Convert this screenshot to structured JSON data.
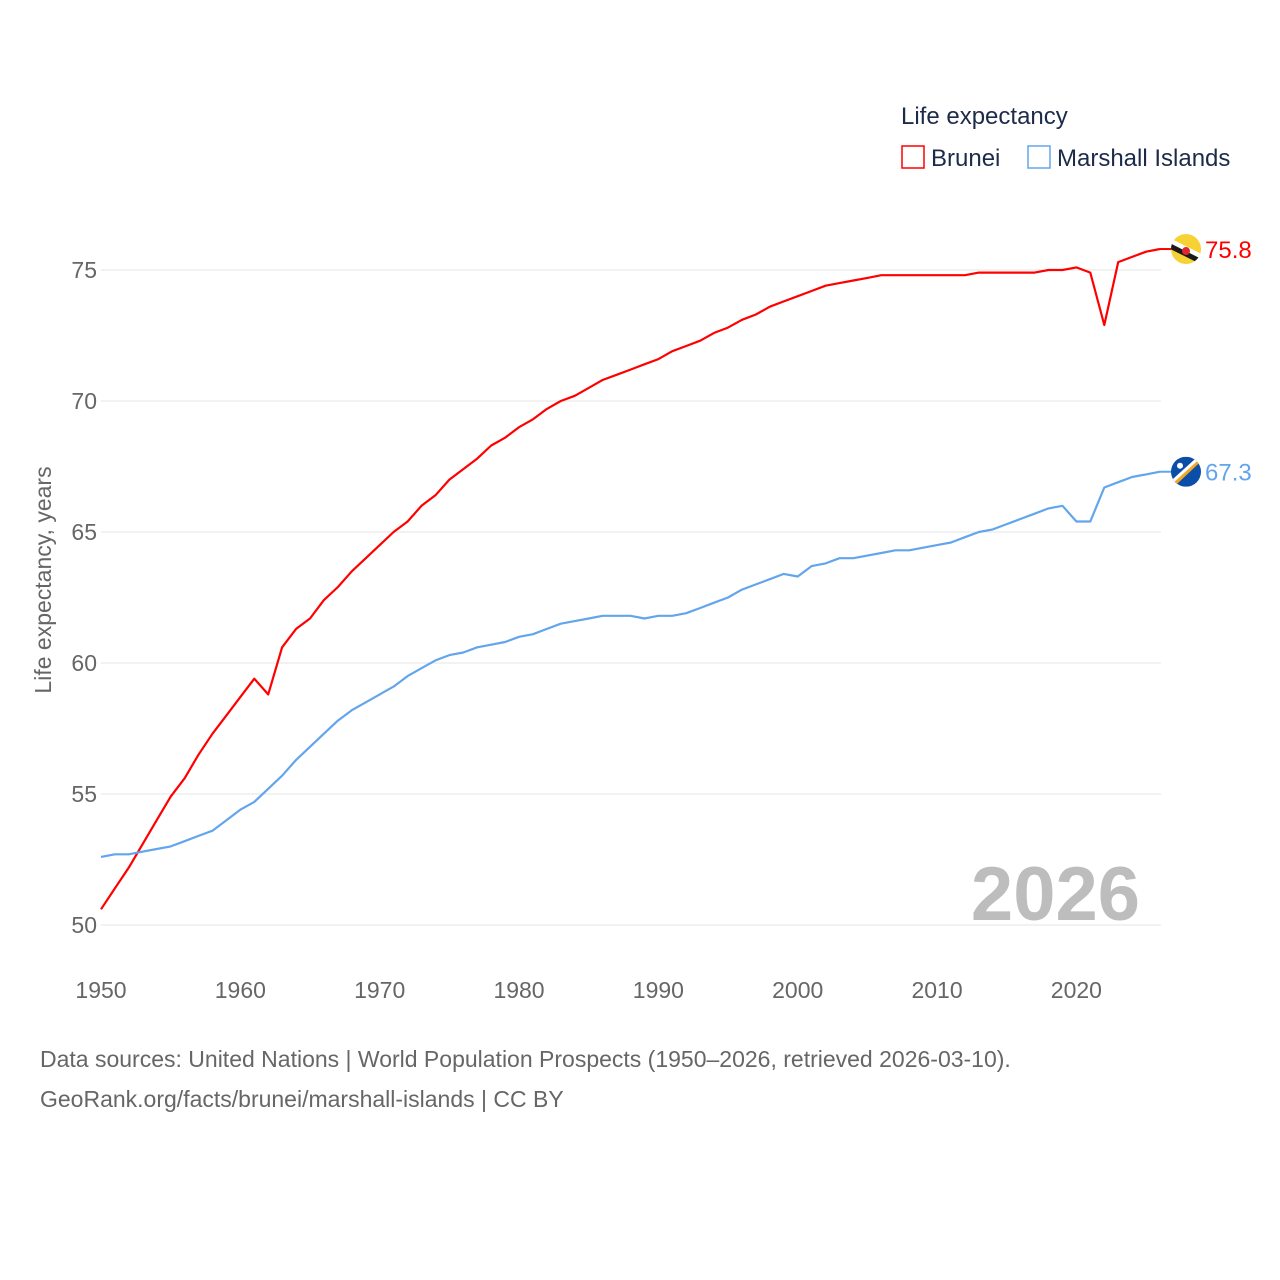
{
  "chart_data": {
    "type": "line",
    "ylabel": "Life expectancy, years",
    "xlabel": "",
    "xlim": [
      1950,
      2026
    ],
    "ylim": [
      50,
      76
    ],
    "yticks": [
      50,
      55,
      60,
      65,
      70,
      75
    ],
    "xticks": [
      1950,
      1960,
      1970,
      1980,
      1990,
      2000,
      2010,
      2020
    ],
    "grid": true,
    "legend": {
      "title": "Life expectancy",
      "placement": "top-right"
    },
    "current_year": "2026",
    "x": [
      1950,
      1951,
      1952,
      1953,
      1954,
      1955,
      1956,
      1957,
      1958,
      1959,
      1960,
      1961,
      1962,
      1963,
      1964,
      1965,
      1966,
      1967,
      1968,
      1969,
      1970,
      1971,
      1972,
      1973,
      1974,
      1975,
      1976,
      1977,
      1978,
      1979,
      1980,
      1981,
      1982,
      1983,
      1984,
      1985,
      1986,
      1987,
      1988,
      1989,
      1990,
      1991,
      1992,
      1993,
      1994,
      1995,
      1996,
      1997,
      1998,
      1999,
      2000,
      2001,
      2002,
      2003,
      2004,
      2005,
      2006,
      2007,
      2008,
      2009,
      2010,
      2011,
      2012,
      2013,
      2014,
      2015,
      2016,
      2017,
      2018,
      2019,
      2020,
      2021,
      2022,
      2023,
      2024,
      2025,
      2026
    ],
    "series": [
      {
        "name": "Brunei",
        "color": "#ff0000",
        "end_label": "75.8",
        "flag": "brunei-flag",
        "values": [
          50.6,
          51.4,
          52.2,
          53.1,
          54.0,
          54.9,
          55.6,
          56.5,
          57.3,
          58.0,
          58.7,
          59.4,
          58.8,
          60.6,
          61.3,
          61.7,
          62.4,
          62.9,
          63.5,
          64.0,
          64.5,
          65.0,
          65.4,
          66.0,
          66.4,
          67.0,
          67.4,
          67.8,
          68.3,
          68.6,
          69.0,
          69.3,
          69.7,
          70.0,
          70.2,
          70.5,
          70.8,
          71.0,
          71.2,
          71.4,
          71.6,
          71.9,
          72.1,
          72.3,
          72.6,
          72.8,
          73.1,
          73.3,
          73.6,
          73.8,
          74.0,
          74.2,
          74.4,
          74.5,
          74.6,
          74.7,
          74.8,
          74.8,
          74.8,
          74.8,
          74.8,
          74.8,
          74.8,
          74.9,
          74.9,
          74.9,
          74.9,
          74.9,
          75.0,
          75.0,
          75.1,
          74.9,
          72.9,
          75.3,
          75.5,
          75.7,
          75.8
        ]
      },
      {
        "name": "Marshall Islands",
        "color": "#63a5ec",
        "end_label": "67.3",
        "flag": "marshall-islands-flag",
        "values": [
          52.6,
          52.7,
          52.7,
          52.8,
          52.9,
          53.0,
          53.2,
          53.4,
          53.6,
          54.0,
          54.4,
          54.7,
          55.2,
          55.7,
          56.3,
          56.8,
          57.3,
          57.8,
          58.2,
          58.5,
          58.8,
          59.1,
          59.5,
          59.8,
          60.1,
          60.3,
          60.4,
          60.6,
          60.7,
          60.8,
          61.0,
          61.1,
          61.3,
          61.5,
          61.6,
          61.7,
          61.8,
          61.8,
          61.8,
          61.7,
          61.8,
          61.8,
          61.9,
          62.1,
          62.3,
          62.5,
          62.8,
          63.0,
          63.2,
          63.4,
          63.3,
          63.7,
          63.8,
          64.0,
          64.0,
          64.1,
          64.2,
          64.3,
          64.3,
          64.4,
          64.5,
          64.6,
          64.8,
          65.0,
          65.1,
          65.3,
          65.5,
          65.7,
          65.9,
          66.0,
          65.4,
          65.4,
          66.7,
          66.9,
          67.1,
          67.2,
          67.3
        ]
      }
    ]
  },
  "source": {
    "line1": "Data sources: United Nations | World Population Prospects (1950–2026, retrieved 2026-03-10).",
    "line2": "GeoRank.org/facts/brunei/marshall-islands | CC BY"
  }
}
